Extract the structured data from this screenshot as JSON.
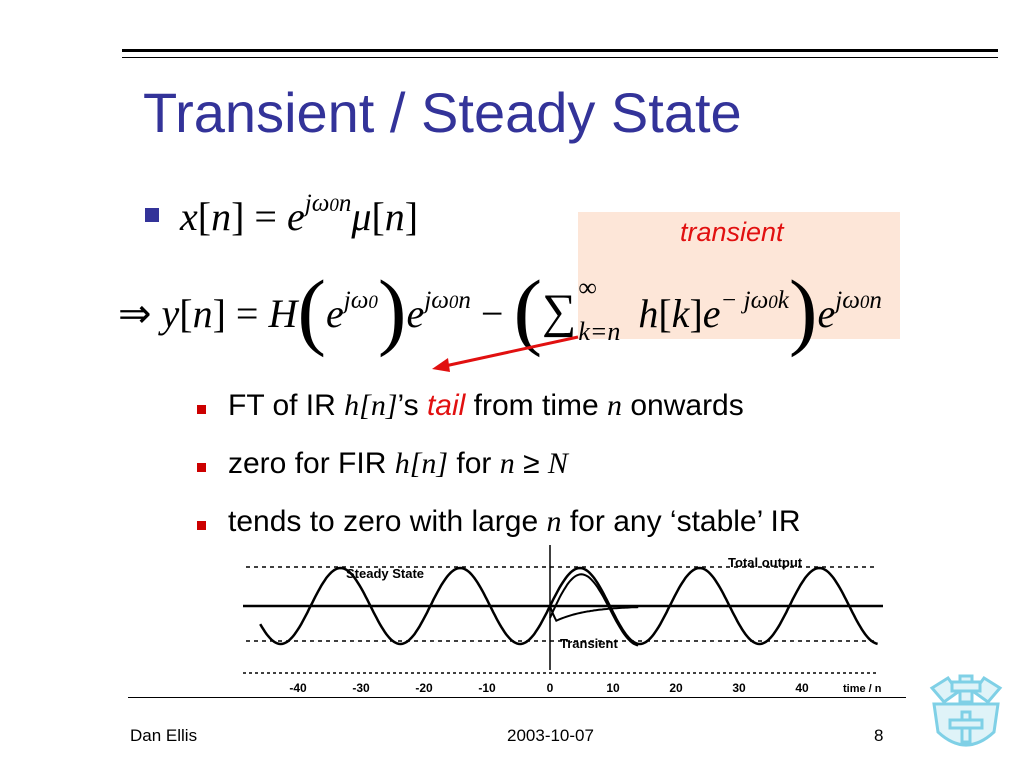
{
  "slide": {
    "title": "Transient / Steady State",
    "equation1": {
      "x": "x",
      "n": "n",
      "e": "e",
      "exp_j": "j",
      "exp_w": "ω",
      "exp_0": "0",
      "exp_n": "n",
      "mu": "μ"
    },
    "equation2": {
      "implies": "⇒",
      "y": "y",
      "H": "H",
      "inf": "∞",
      "k_eq_n": "k=n",
      "h": "h",
      "k": "k",
      "minus_j": "− j"
    },
    "transient_label": "transient",
    "bullets": [
      {
        "text_a": "FT of IR ",
        "math_a": "h[n]",
        "text_b": "’s ",
        "highlight": "tail",
        "text_c": " from time ",
        "math_b": "n",
        "text_d": " onwards"
      },
      {
        "text_a": "zero for FIR ",
        "math_a": "h[n]",
        "text_b": " for ",
        "math_b": "n",
        "text_c": " ≥ ",
        "math_c": "N"
      },
      {
        "text_a": "tends to zero with large ",
        "math_a": "n",
        "text_b": " for any ‘stable’ IR"
      }
    ],
    "graph": {
      "labels": {
        "steady": "Steady State",
        "total": "Total output",
        "transient": "Transient",
        "axis": "time / n"
      },
      "ticks": [
        "-40",
        "-30",
        "-20",
        "-10",
        "0",
        "10",
        "20",
        "30",
        "40"
      ]
    },
    "footer": {
      "author": "Dan Ellis",
      "date": "2003-10-07",
      "page": "8"
    },
    "colors": {
      "title": "#333399",
      "accent": "#e11010",
      "transient_bg": "#fde6d8"
    },
    "logo_icon": "crown-shield-crest-icon"
  }
}
